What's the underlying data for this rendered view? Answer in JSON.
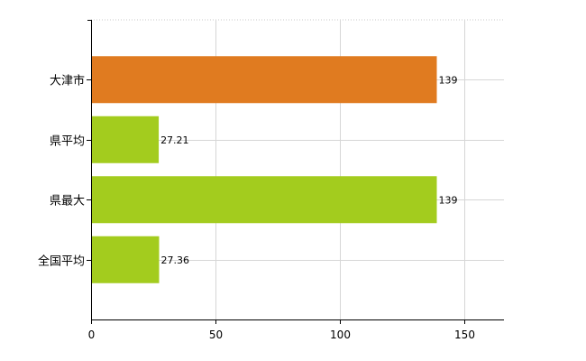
{
  "chart_data": {
    "type": "bar",
    "orientation": "horizontal",
    "categories": [
      "大津市",
      "県平均",
      "県最大",
      "全国平均"
    ],
    "values": [
      139,
      27.21,
      139,
      27.36
    ],
    "value_labels": [
      "139",
      "27.21",
      "139",
      "27.36"
    ],
    "bar_colors": [
      "#e07b20",
      "#a3cc1e",
      "#a3cc1e",
      "#a3cc1e"
    ],
    "xlim": [
      0,
      166
    ],
    "xticks": [
      0,
      50,
      100,
      150
    ],
    "grid": true,
    "legend": "none"
  }
}
